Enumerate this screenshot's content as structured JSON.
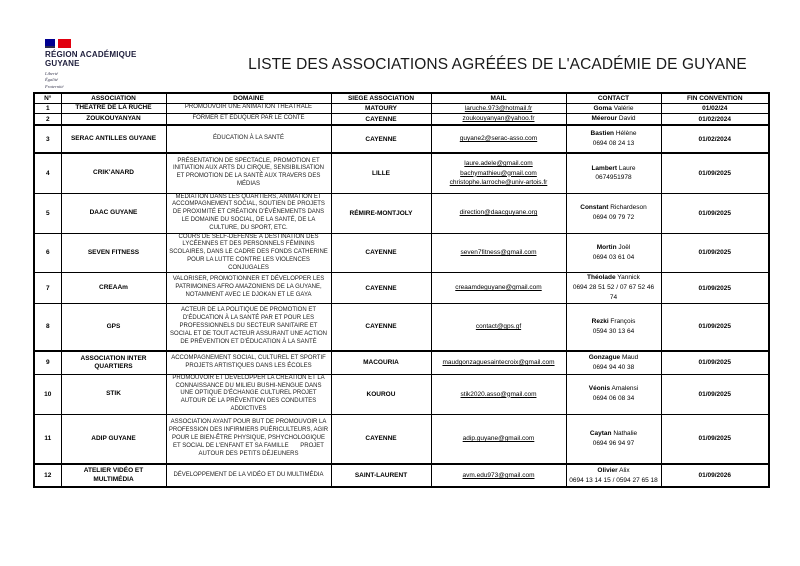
{
  "header": {
    "logo": {
      "line1": "RÉGION ACADÉMIQUE",
      "line2": "GUYANE",
      "motto1": "Liberté",
      "motto2": "Égalité",
      "motto3": "Fraternité"
    },
    "title": "LISTE DES ASSOCIATIONS AGRÉÉES DE L'ACADÉMIE DE GUYANE"
  },
  "colors": {
    "flag_blue": "#000091",
    "flag_red": "#e1000f",
    "logo_text": "#1e1e3c",
    "table_border": "#000000"
  },
  "table": {
    "columns": [
      "N°",
      "ASSOCIATION",
      "DOMAINE",
      "SIEGE ASSOCIATION",
      "MAIL",
      "CONTACT",
      "FIN CONVENTION"
    ],
    "rows": [
      {
        "num": "1",
        "association": "THEATRE DE LA RUCHE",
        "domaine": "PROMOUVOIR UNE ANIMATION THÉÂTRALE",
        "siege": "MATOURY",
        "mails": [
          "laruche.973@hotmail.fr"
        ],
        "contact_last": "Goma",
        "contact_first": "Valérie",
        "phone": "",
        "fin": "01/02/24",
        "group_end": false
      },
      {
        "num": "2",
        "association": "ZOUKOUYANYAN",
        "domaine": "FORMER ET ÉDUQUER PAR LE CONTE",
        "siege": "CAYENNE",
        "mails": [
          "zoukouyanyan@yahoo.fr"
        ],
        "contact_last": "Méerour",
        "contact_first": "David",
        "phone": "",
        "fin": "01/02/2024",
        "group_end": true
      },
      {
        "num": "3",
        "association": "SERAC ANTILLES GUYANE",
        "domaine": "ÉDUCATION À LA SANTÉ",
        "siege": "CAYENNE",
        "mails": [
          "guyane2@serac-asso.com"
        ],
        "contact_last": "Bastien",
        "contact_first": "Hélène",
        "phone": "0694 08 24 13",
        "fin": "01/02/2024",
        "group_end": true
      },
      {
        "num": "4",
        "association": "CRIK'ANARD",
        "domaine": "PRÉSENTATION DE SPECTACLE, PROMOTION ET INITIATION AUX ARTS DU CIRQUE, SENSIBILISATION ET PROMOTION DE LA SANTÉ AUX TRAVERS DES MÉDIAS",
        "siege": "LILLE",
        "mails": [
          "laure.adele@gmail.com",
          "bachymathieu@gmail.com",
          "christophe.larroche@univ-artois.fr"
        ],
        "contact_last": "Lambert",
        "contact_first": "Laure",
        "phone": "0674951978",
        "fin": "01/09/2025",
        "group_end": false
      },
      {
        "num": "5",
        "association": "DAAC GUYANE",
        "domaine": "MÉDIATION DANS LES QUARTIERS, ANIMATION ET ACCOMPAGNEMENT SOCIAL, SOUTIEN DE PROJETS DE PROXIMITÉ ET CRÉATION D'ÉVÈNEMENTS DANS LE DOMAINE DU SOCIAL, DE LA SANTÉ, DE LA CULTURE, DU SPORT, ETC.",
        "siege": "RÉMIRE-MONTJOLY",
        "mails": [
          "direction@daacguyane.org"
        ],
        "contact_last": "Constant",
        "contact_first": "Richardeson",
        "phone": "0694 09 79 72",
        "fin": "01/09/2025",
        "group_end": false
      },
      {
        "num": "6",
        "association": "SEVEN FITNESS",
        "domaine": "COURS DE SELF-DEFENSE À DESTINATION DES LYCÉENNES ET DES PERSONNELS FÉMININS SCOLAIRES, DANS LE CADRE DES FONDS CATHERINE POUR LA LUTTE CONTRE LES VIOLENCES CONJUGALES",
        "siege": "CAYENNE",
        "mails": [
          "seven7fitness@gmail.com"
        ],
        "contact_last": "Mortin",
        "contact_first": "Joël",
        "phone": "0694 03 61 04",
        "fin": "01/09/2025",
        "group_end": false
      },
      {
        "num": "7",
        "association": "CREAAm",
        "domaine": "VALORISER, PROMOTIONNER ET DÉVELOPPER LES PATRIMOINES AFRO AMAZONIENS DE LA GUYANE, NOTAMMENT AVEC LE DJOKAN ET LE GAYA",
        "siege": "CAYENNE",
        "mails": [
          "creaamdeguyane@gmail.com"
        ],
        "contact_last": "Théolade",
        "contact_first": "Yannick",
        "phone": "0694 28 51 52 / 07 67 52 46 74",
        "fin": "01/09/2025",
        "group_end": false
      },
      {
        "num": "8",
        "association": "GPS",
        "domaine": "ACTEUR DE LA POLITIQUE DE PROMOTION ET D'ÉDUCATION À LA SANTÉ PAR ET POUR LES PROFESSIONNELS DU SECTEUR SANITAIRE ET SOCIAL ET DE TOUT ACTEUR ASSURANT UNE ACTION DE PRÉVENTION ET D'ÉDUCATION À LA SANTÉ",
        "siege": "CAYENNE",
        "mails": [
          "contact@gps.gf"
        ],
        "contact_last": "Rezki",
        "contact_first": "François",
        "phone": "0594 30 13 64",
        "fin": "01/09/2025",
        "group_end": true
      },
      {
        "num": "9",
        "association": "ASSOCIATION INTER QUARTIERS",
        "domaine": "ACCOMPAGNEMENT SOCIAL, CULTUREL ET SPORTIF PROJETS ARTISTIQUES DANS LES ÉCOLES",
        "siege": "MACOURIA",
        "mails": [
          "maudgonzaguesaintecroix@gmail.com"
        ],
        "contact_last": "Gonzague",
        "contact_first": "Maud",
        "phone": "0694 94 40 38",
        "fin": "01/09/2025",
        "group_end": false
      },
      {
        "num": "10",
        "association": "STIK",
        "domaine": "PROMOUVOIR ET DÉVELOPPER LA CRÉATION ET LA CONNAISSANCE DU MILIEU BUSHI-NENGUE DANS UNE OPTIQUE D'ÉCHANGE CULTUREL PROJET AUTOUR DE LA PRÉVENTION DES CONDUITES ADDICTIVES",
        "siege": "KOUROU",
        "mails": [
          "stik2020.asso@gmail.com"
        ],
        "contact_last": "Véonis",
        "contact_first": "Amalensi",
        "phone": "0694 06 08 34",
        "fin": "01/09/2025",
        "group_end": false
      },
      {
        "num": "11",
        "association": "ADIP GUYANE",
        "domaine": "ASSOCIATION AYANT POUR BUT DE PROMOUVOIR LA PROFESSION DES INFIRMIERS PUÉRICULTEURS, AGIR POUR LE BIEN-ÊTRE PHYSIQUE, PSHYCHOLOGIQUE ET SOCIAL DE L'ENFANT ET SA FAMILLE       PROJET AUTOUR DES PETITS DÉJEUNERS",
        "siege": "CAYENNE",
        "mails": [
          "adip.guyane@gmail.com"
        ],
        "contact_last": "Caytan",
        "contact_first": "Nathalie",
        "phone": "0694 96 94 97",
        "fin": "01/09/2025",
        "group_end": true
      },
      {
        "num": "12",
        "association": "ATELIER VIDÉO ET MULTIMÉDIA",
        "domaine": "DÉVELOPPEMENT DE LA VIDÉO ET DU MULTIMÉDIA",
        "siege": "SAINT-LAURENT",
        "mails": [
          "avm.edu973@gmail.com"
        ],
        "contact_last": "Olivier",
        "contact_first": "Alix",
        "phone": "0694 13 14 15 / 0594 27 65 18",
        "fin": "01/09/2026",
        "group_end": false
      }
    ]
  }
}
